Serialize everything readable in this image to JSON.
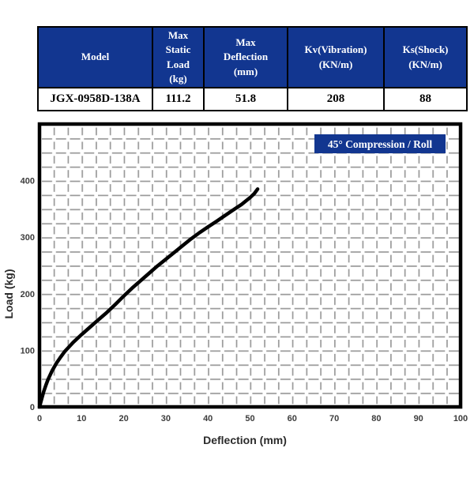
{
  "table": {
    "headers": [
      "Model",
      "Max\nStatic\nLoad\n(kg)",
      "Max\nDeflection\n(mm)",
      "Kv(Vibration)\n(KN/m)",
      "Ks(Shock)\n(KN/m)"
    ],
    "row": [
      "JGX-0958D-138A",
      "111.2",
      "51.8",
      "208",
      "88"
    ]
  },
  "chart": {
    "badge": "45° Compression / Roll",
    "xlabel": "Deflection (mm)",
    "ylabel": "Load (kg)"
  },
  "chart_data": {
    "type": "line",
    "title": "45° Compression / Roll",
    "xlabel": "Deflection (mm)",
    "ylabel": "Load (kg)",
    "xlim": [
      0,
      100
    ],
    "ylim": [
      0,
      500
    ],
    "xticks": [
      0,
      10,
      20,
      30,
      40,
      50,
      60,
      70,
      80,
      90,
      100
    ],
    "yticks": [
      0,
      100,
      200,
      300,
      400
    ],
    "grid": "dashed-gray",
    "legend_position": "top-right-badge",
    "series": [
      {
        "name": "45° Compression / Roll",
        "points": [
          [
            0,
            0
          ],
          [
            0.5,
            14
          ],
          [
            1,
            27
          ],
          [
            1.5,
            38
          ],
          [
            2,
            48
          ],
          [
            3,
            64
          ],
          [
            4,
            77
          ],
          [
            5,
            88
          ],
          [
            6,
            98
          ],
          [
            7,
            106
          ],
          [
            8,
            114
          ],
          [
            10,
            128
          ],
          [
            12,
            141
          ],
          [
            14,
            154
          ],
          [
            16,
            167
          ],
          [
            18,
            181
          ],
          [
            20,
            196
          ],
          [
            22,
            210
          ],
          [
            24,
            223
          ],
          [
            26,
            236
          ],
          [
            28,
            249
          ],
          [
            30,
            261
          ],
          [
            32,
            273
          ],
          [
            34,
            285
          ],
          [
            36,
            297
          ],
          [
            38,
            308
          ],
          [
            40,
            318
          ],
          [
            42,
            328
          ],
          [
            44,
            338
          ],
          [
            46,
            348
          ],
          [
            48,
            358
          ],
          [
            50,
            370
          ],
          [
            51,
            377
          ],
          [
            51.8,
            385
          ]
        ]
      }
    ]
  },
  "colors": {
    "navy": "#123690",
    "header_text": "#ffffff",
    "curve": "#000000",
    "frame": "#000000",
    "grid": "#999999",
    "tick_text": "#3d3d3d"
  }
}
